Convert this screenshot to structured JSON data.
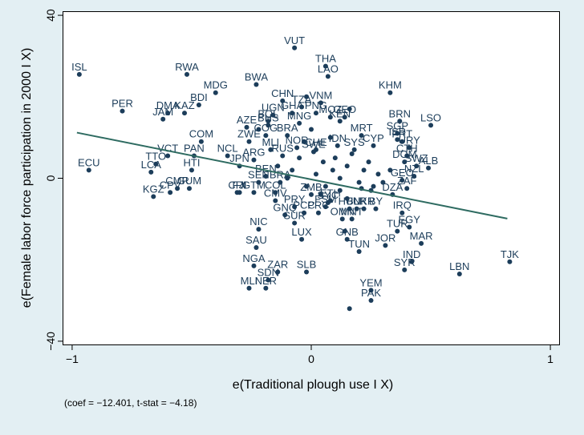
{
  "chart_data": {
    "type": "scatter",
    "xlabel": "e(Traditional plough use I X)",
    "ylabel": "e(Female labor force participation in 2000 I X)",
    "note": "(coef = −12.401, t-stat = −4.18)",
    "xlim": [
      -1.04,
      1.04
    ],
    "ylim": [
      -41,
      41
    ],
    "xticks": [
      {
        "value": -1,
        "label": "−1"
      },
      {
        "value": 0,
        "label": "0"
      },
      {
        "value": 1,
        "label": "1"
      }
    ],
    "yticks": [
      {
        "value": -40,
        "label": "−40"
      },
      {
        "value": 0,
        "label": "0"
      },
      {
        "value": 40,
        "label": "40"
      }
    ],
    "fit_line": {
      "x": [
        -0.98,
        0.82
      ],
      "y": [
        11.2,
        -9.9
      ]
    },
    "colors": {
      "marker": "#1c3d5a",
      "fit_line": "#2e6b61",
      "background": "#e3eff3",
      "plot_bg": "#ffffff"
    },
    "labeled_points": [
      {
        "label": "VUT",
        "x": -0.07,
        "y": 32
      },
      {
        "label": "THA",
        "x": 0.06,
        "y": 27.5
      },
      {
        "label": "LAO",
        "x": 0.07,
        "y": 25
      },
      {
        "label": "ISL",
        "x": -0.97,
        "y": 25.5
      },
      {
        "label": "RWA",
        "x": -0.52,
        "y": 25.5
      },
      {
        "label": "BWA",
        "x": -0.23,
        "y": 23
      },
      {
        "label": "KHM",
        "x": 0.33,
        "y": 21
      },
      {
        "label": "CHN",
        "x": -0.12,
        "y": 19
      },
      {
        "label": "MDG",
        "x": -0.4,
        "y": 21
      },
      {
        "label": "TZA",
        "x": -0.04,
        "y": 17.5
      },
      {
        "label": "VNM",
        "x": 0.04,
        "y": 18.5
      },
      {
        "label": "GHA",
        "x": -0.08,
        "y": 16
      },
      {
        "label": "PNG",
        "x": 0.02,
        "y": 16
      },
      {
        "label": "UGN",
        "x": -0.16,
        "y": 15.5
      },
      {
        "label": "BDI",
        "x": -0.47,
        "y": 18
      },
      {
        "label": "PER",
        "x": -0.79,
        "y": 16.5
      },
      {
        "label": "MOZ",
        "x": 0.08,
        "y": 15
      },
      {
        "label": "GEO",
        "x": 0.14,
        "y": 15
      },
      {
        "label": "KEN",
        "x": 0.12,
        "y": 14
      },
      {
        "label": "BRN",
        "x": 0.37,
        "y": 14
      },
      {
        "label": "LSO",
        "x": 0.5,
        "y": 13
      },
      {
        "label": "DMA",
        "x": -0.6,
        "y": 16
      },
      {
        "label": "KAZ",
        "x": -0.53,
        "y": 16
      },
      {
        "label": "JAM",
        "x": -0.62,
        "y": 14.5
      },
      {
        "label": "BOL",
        "x": -0.18,
        "y": 14
      },
      {
        "label": "MNG",
        "x": -0.05,
        "y": 13.5
      },
      {
        "label": "BHS",
        "x": -0.18,
        "y": 13
      },
      {
        "label": "AZE",
        "x": -0.27,
        "y": 12.5
      },
      {
        "label": "SGP",
        "x": 0.36,
        "y": 11
      },
      {
        "label": "MRT",
        "x": 0.21,
        "y": 10.5
      },
      {
        "label": "COG",
        "x": -0.19,
        "y": 10.5
      },
      {
        "label": "BRA",
        "x": -0.1,
        "y": 10.5
      },
      {
        "label": "ZWE",
        "x": -0.26,
        "y": 9
      },
      {
        "label": "PRT",
        "x": 0.38,
        "y": 9
      },
      {
        "label": "ISR",
        "x": 0.36,
        "y": 9.5
      },
      {
        "label": "COM",
        "x": -0.46,
        "y": 9
      },
      {
        "label": "IDN",
        "x": 0.11,
        "y": 8
      },
      {
        "label": "CYP",
        "x": 0.26,
        "y": 8
      },
      {
        "label": "URY",
        "x": 0.41,
        "y": 7.5
      },
      {
        "label": "SYS",
        "x": 0.18,
        "y": 7
      },
      {
        "label": "NOR",
        "x": -0.06,
        "y": 7.5
      },
      {
        "label": "CHE",
        "x": 0.02,
        "y": 7
      },
      {
        "label": "MLI",
        "x": -0.17,
        "y": 7
      },
      {
        "label": "SWE",
        "x": 0.01,
        "y": 6.5
      },
      {
        "label": "RUS",
        "x": -0.12,
        "y": 5.5
      },
      {
        "label": "CTH",
        "x": 0.4,
        "y": 5.5
      },
      {
        "label": "PAN",
        "x": -0.49,
        "y": 5.5
      },
      {
        "label": "VCT",
        "x": -0.6,
        "y": 5.5
      },
      {
        "label": "NCL",
        "x": -0.35,
        "y": 5.5
      },
      {
        "label": "DOM",
        "x": 0.39,
        "y": 4
      },
      {
        "label": "ARG",
        "x": -0.24,
        "y": 4.5
      },
      {
        "label": "SWZ",
        "x": 0.44,
        "y": 3
      },
      {
        "label": "TTO",
        "x": -0.65,
        "y": 3.5
      },
      {
        "label": "JPN",
        "x": -0.3,
        "y": 3
      },
      {
        "label": "ALB",
        "x": 0.49,
        "y": 2.5
      },
      {
        "label": "ECU",
        "x": -0.93,
        "y": 2
      },
      {
        "label": "LCA",
        "x": -0.67,
        "y": 1.5
      },
      {
        "label": "HTI",
        "x": -0.5,
        "y": 2
      },
      {
        "label": "NZL",
        "x": 0.43,
        "y": 0.5
      },
      {
        "label": "BEN",
        "x": -0.19,
        "y": 0.5
      },
      {
        "label": "GEO",
        "x": 0.38,
        "y": -0.5
      },
      {
        "label": "BRA",
        "x": -0.13,
        "y": -1
      },
      {
        "label": "SEN",
        "x": -0.22,
        "y": -1
      },
      {
        "label": "CMR",
        "x": -0.56,
        "y": -2.5
      },
      {
        "label": "GUM",
        "x": -0.51,
        "y": -2.5
      },
      {
        "label": "ZAF",
        "x": 0.4,
        "y": -2.5
      },
      {
        "label": "CPV",
        "x": -0.59,
        "y": -3.5
      },
      {
        "label": "COL",
        "x": -0.15,
        "y": -3.5
      },
      {
        "label": "GTM",
        "x": -0.24,
        "y": -3.5
      },
      {
        "label": "CRI",
        "x": -0.31,
        "y": -3.5
      },
      {
        "label": "FJI",
        "x": -0.3,
        "y": -3.5
      },
      {
        "label": "ZMB",
        "x": 0.0,
        "y": -4
      },
      {
        "label": "DZA",
        "x": 0.34,
        "y": -4
      },
      {
        "label": "KGZ",
        "x": -0.66,
        "y": -4.5
      },
      {
        "label": "CMV",
        "x": -0.15,
        "y": -5.5
      },
      {
        "label": "ETH",
        "x": 0.08,
        "y": -5.5
      },
      {
        "label": "SYC",
        "x": 0.07,
        "y": -6
      },
      {
        "label": "PRY",
        "x": -0.07,
        "y": -7
      },
      {
        "label": "FSM",
        "x": 0.06,
        "y": -7
      },
      {
        "label": "HUN",
        "x": 0.16,
        "y": -7.5
      },
      {
        "label": "BLR",
        "x": 0.19,
        "y": -7.5
      },
      {
        "label": "UKR",
        "x": 0.22,
        "y": -7.5
      },
      {
        "label": "BY",
        "x": 0.27,
        "y": -7.5
      },
      {
        "label": "IRQ",
        "x": 0.38,
        "y": -8.5
      },
      {
        "label": "PCC",
        "x": -0.03,
        "y": -8.5
      },
      {
        "label": "PRC",
        "x": 0.03,
        "y": -8.5
      },
      {
        "label": "GNQ",
        "x": -0.11,
        "y": -9
      },
      {
        "label": "OMN",
        "x": 0.13,
        "y": -10
      },
      {
        "label": "MNT",
        "x": 0.17,
        "y": -10
      },
      {
        "label": "SUR",
        "x": -0.07,
        "y": -11
      },
      {
        "label": "TUR",
        "x": 0.36,
        "y": -13
      },
      {
        "label": "EGY",
        "x": 0.41,
        "y": -12
      },
      {
        "label": "NIC",
        "x": -0.22,
        "y": -12.5
      },
      {
        "label": "LUX",
        "x": -0.04,
        "y": -15
      },
      {
        "label": "GNB",
        "x": 0.15,
        "y": -15
      },
      {
        "label": "MAR",
        "x": 0.46,
        "y": -16
      },
      {
        "label": "JOR",
        "x": 0.31,
        "y": -16.5
      },
      {
        "label": "SAU",
        "x": -0.23,
        "y": -17
      },
      {
        "label": "TUN",
        "x": 0.2,
        "y": -18
      },
      {
        "label": "TJK",
        "x": 0.83,
        "y": -20.5
      },
      {
        "label": "IND",
        "x": 0.42,
        "y": -20.5
      },
      {
        "label": "NGA",
        "x": -0.24,
        "y": -21.5
      },
      {
        "label": "SYR",
        "x": 0.39,
        "y": -22.5
      },
      {
        "label": "LBN",
        "x": 0.62,
        "y": -23.5
      },
      {
        "label": "ZAR",
        "x": -0.14,
        "y": -23
      },
      {
        "label": "SLB",
        "x": -0.02,
        "y": -23
      },
      {
        "label": "SDN",
        "x": -0.18,
        "y": -25
      },
      {
        "label": "MLI",
        "x": -0.26,
        "y": -27
      },
      {
        "label": "NER",
        "x": -0.19,
        "y": -27
      },
      {
        "label": "YEM",
        "x": 0.25,
        "y": -27.5
      },
      {
        "label": "PAK",
        "x": 0.25,
        "y": -30
      }
    ],
    "unlabeled_points": [
      [
        -0.02,
        20
      ],
      [
        0.16,
        17
      ],
      [
        -0.22,
        12
      ],
      [
        0.0,
        12
      ],
      [
        0.08,
        10
      ],
      [
        -0.03,
        9
      ],
      [
        0.1,
        5
      ],
      [
        -0.05,
        5
      ],
      [
        0.05,
        4
      ],
      [
        0.15,
        3
      ],
      [
        0.22,
        2
      ],
      [
        0.28,
        1
      ],
      [
        -0.08,
        2
      ],
      [
        0.02,
        1
      ],
      [
        0.12,
        0
      ],
      [
        0.2,
        -1
      ],
      [
        0.3,
        -1
      ],
      [
        -0.02,
        -2
      ],
      [
        0.06,
        -2
      ],
      [
        0.25,
        -3
      ],
      [
        0.12,
        -3
      ],
      [
        -0.1,
        0
      ],
      [
        0.17,
        6
      ],
      [
        0.24,
        4
      ],
      [
        0.04,
        -4
      ],
      [
        0.15,
        -5
      ],
      [
        0.26,
        -2
      ],
      [
        -0.14,
        3
      ],
      [
        0.33,
        2
      ],
      [
        0.09,
        2
      ],
      [
        0.14,
        -13
      ],
      [
        0.21,
        -2.5
      ],
      [
        0.16,
        -32
      ]
    ]
  }
}
